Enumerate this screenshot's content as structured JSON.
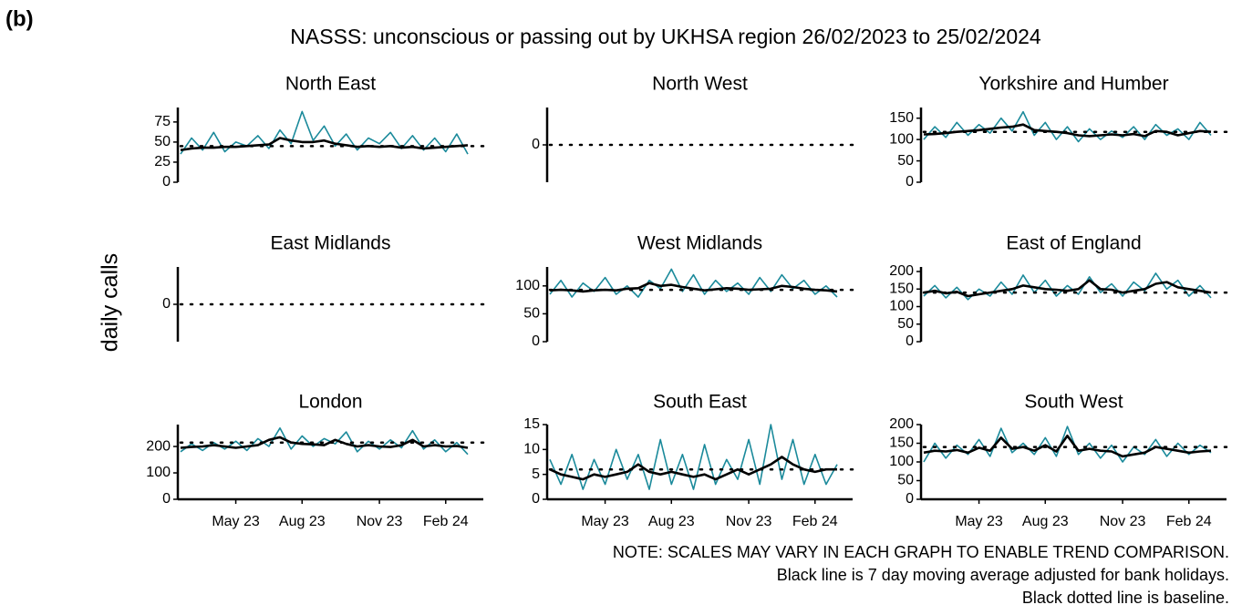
{
  "page": {
    "label": "(b)",
    "title": "NASSS: unconscious or passing out by UKHSA region 26/02/2023 to 25/02/2024",
    "ylabel": "daily calls",
    "notes": [
      "NOTE: SCALES MAY VARY IN EACH GRAPH TO ENABLE TREND COMPARISON.",
      "Black line is 7 day moving average adjusted for bank holidays.",
      "Black dotted line is baseline."
    ]
  },
  "categories": [
    null,
    null,
    null,
    null,
    null,
    "May 23",
    null,
    null,
    null,
    null,
    null,
    "Aug 23",
    null,
    null,
    null,
    null,
    null,
    null,
    "Nov 23",
    null,
    null,
    null,
    null,
    null,
    "Feb 24",
    null,
    null
  ],
  "chart_data": [
    {
      "type": "line",
      "title": "North East",
      "ylim": [
        0,
        93
      ],
      "yticks": [
        0,
        25,
        50,
        75
      ],
      "baseline": 45,
      "series": [
        {
          "color": "#1b8a9b",
          "values": [
            35,
            55,
            40,
            62,
            38,
            50,
            45,
            58,
            42,
            65,
            48,
            88,
            52,
            70,
            45,
            60,
            40,
            55,
            48,
            62,
            42,
            58,
            40,
            55,
            38,
            60,
            35
          ]
        },
        {
          "color": "#000000",
          "values": [
            40,
            42,
            43,
            43,
            44,
            44,
            45,
            46,
            47,
            55,
            52,
            50,
            50,
            52,
            48,
            46,
            44,
            45,
            44,
            45,
            43,
            44,
            42,
            43,
            44,
            45,
            46
          ]
        }
      ]
    },
    {
      "type": "line",
      "title": "North West",
      "ylim": [
        -1,
        1
      ],
      "yticks": [
        0
      ],
      "baseline": 0,
      "series": []
    },
    {
      "type": "line",
      "title": "Yorkshire and Humber",
      "ylim": [
        0,
        175
      ],
      "yticks": [
        0,
        50,
        100,
        150
      ],
      "baseline": 118,
      "series": [
        {
          "color": "#1b8a9b",
          "values": [
            100,
            130,
            105,
            140,
            110,
            135,
            115,
            150,
            120,
            165,
            110,
            140,
            100,
            130,
            95,
            125,
            100,
            120,
            105,
            130,
            100,
            135,
            110,
            125,
            100,
            140,
            110
          ]
        },
        {
          "color": "#000000",
          "values": [
            112,
            113,
            115,
            118,
            120,
            122,
            125,
            128,
            130,
            135,
            122,
            120,
            118,
            115,
            110,
            108,
            110,
            112,
            110,
            113,
            108,
            120,
            118,
            110,
            115,
            120,
            118
          ]
        }
      ]
    },
    {
      "type": "line",
      "title": "East Midlands",
      "ylim": [
        -1,
        1
      ],
      "yticks": [
        0
      ],
      "baseline": 0,
      "series": []
    },
    {
      "type": "line",
      "title": "West Midlands",
      "ylim": [
        0,
        134
      ],
      "yticks": [
        0,
        50,
        100
      ],
      "baseline": 93,
      "series": [
        {
          "color": "#1b8a9b",
          "values": [
            85,
            110,
            80,
            105,
            90,
            115,
            85,
            100,
            80,
            110,
            95,
            130,
            90,
            120,
            85,
            110,
            90,
            105,
            85,
            115,
            90,
            120,
            95,
            110,
            85,
            100,
            80
          ]
        },
        {
          "color": "#000000",
          "values": [
            92,
            93,
            92,
            90,
            92,
            93,
            92,
            95,
            96,
            105,
            100,
            102,
            98,
            95,
            92,
            94,
            96,
            95,
            93,
            94,
            95,
            100,
            98,
            95,
            93,
            92,
            90
          ]
        }
      ]
    },
    {
      "type": "line",
      "title": "East of England",
      "ylim": [
        0,
        213
      ],
      "yticks": [
        0,
        50,
        100,
        150,
        200
      ],
      "baseline": 140,
      "series": [
        {
          "color": "#1b8a9b",
          "values": [
            130,
            160,
            125,
            155,
            120,
            150,
            130,
            170,
            135,
            190,
            140,
            175,
            130,
            160,
            135,
            185,
            140,
            165,
            130,
            170,
            145,
            195,
            150,
            175,
            130,
            160,
            125
          ]
        },
        {
          "color": "#000000",
          "values": [
            140,
            145,
            138,
            142,
            130,
            135,
            140,
            145,
            150,
            160,
            155,
            150,
            148,
            145,
            150,
            175,
            150,
            148,
            140,
            145,
            150,
            165,
            170,
            155,
            150,
            145,
            140
          ]
        }
      ]
    },
    {
      "type": "line",
      "title": "London",
      "ylim": [
        0,
        283
      ],
      "yticks": [
        0,
        100,
        200
      ],
      "baseline": 215,
      "series": [
        {
          "color": "#1b8a9b",
          "values": [
            180,
            210,
            185,
            215,
            190,
            220,
            185,
            230,
            200,
            270,
            190,
            240,
            200,
            230,
            210,
            255,
            180,
            220,
            190,
            225,
            195,
            260,
            190,
            225,
            180,
            215,
            170
          ]
        },
        {
          "color": "#000000",
          "values": [
            195,
            198,
            200,
            205,
            200,
            195,
            200,
            205,
            225,
            235,
            215,
            210,
            208,
            205,
            225,
            210,
            200,
            205,
            200,
            198,
            205,
            225,
            200,
            205,
            200,
            202,
            195
          ]
        }
      ]
    },
    {
      "type": "line",
      "title": "South East",
      "ylim": [
        0,
        15
      ],
      "yticks": [
        0,
        5,
        10,
        15
      ],
      "baseline": 6,
      "series": [
        {
          "color": "#1b8a9b",
          "values": [
            8,
            3,
            9,
            2,
            8,
            3,
            10,
            4,
            9,
            2,
            12,
            3,
            9,
            2,
            11,
            3,
            8,
            4,
            12,
            3,
            15,
            4,
            12,
            3,
            9,
            3,
            7
          ]
        },
        {
          "color": "#000000",
          "values": [
            6,
            5,
            4.5,
            4,
            5,
            4.5,
            5,
            5.5,
            7,
            5.5,
            5,
            5.5,
            5,
            4.5,
            5,
            4,
            5,
            6,
            5,
            6,
            7,
            8.5,
            7,
            6,
            5.5,
            6,
            6
          ]
        }
      ]
    },
    {
      "type": "line",
      "title": "South West",
      "ylim": [
        0,
        200
      ],
      "yticks": [
        0,
        50,
        100,
        150,
        200
      ],
      "baseline": 140,
      "series": [
        {
          "color": "#1b8a9b",
          "values": [
            100,
            150,
            110,
            145,
            120,
            160,
            115,
            190,
            125,
            150,
            120,
            165,
            115,
            195,
            120,
            150,
            110,
            145,
            100,
            140,
            120,
            160,
            115,
            150,
            120,
            145,
            125
          ]
        },
        {
          "color": "#000000",
          "values": [
            125,
            130,
            128,
            132,
            125,
            138,
            130,
            165,
            135,
            140,
            130,
            145,
            128,
            170,
            130,
            135,
            130,
            128,
            115,
            120,
            125,
            140,
            135,
            130,
            125,
            128,
            130
          ]
        }
      ]
    }
  ]
}
